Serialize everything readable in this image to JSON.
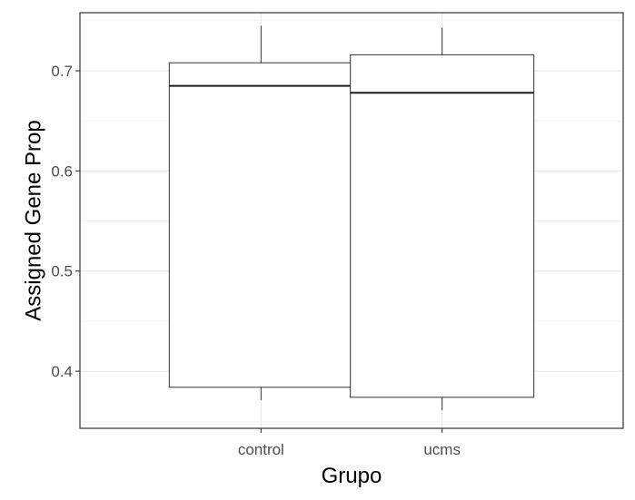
{
  "chart_data": {
    "type": "boxplot",
    "xlabel": "Grupo",
    "ylabel": "Assigned Gene Prop",
    "categories": [
      "control",
      "ucms"
    ],
    "boxes": [
      {
        "category": "control",
        "min": 0.371,
        "q1": 0.384,
        "median": 0.685,
        "q3": 0.708,
        "max": 0.745
      },
      {
        "category": "ucms",
        "min": 0.361,
        "q1": 0.374,
        "median": 0.678,
        "q3": 0.716,
        "max": 0.743
      }
    ],
    "ylim": [
      0.343,
      0.758
    ],
    "yticks": [
      {
        "value": 0.4,
        "label": "0.4"
      },
      {
        "value": 0.5,
        "label": "0.5"
      },
      {
        "value": 0.6,
        "label": "0.6"
      },
      {
        "value": 0.7,
        "label": "0.7"
      }
    ],
    "grid": true,
    "colors": {
      "box_fill": "#ffffff",
      "box_stroke": "#333333",
      "grid": "#ebebeb",
      "panel_border": "#333333"
    }
  }
}
